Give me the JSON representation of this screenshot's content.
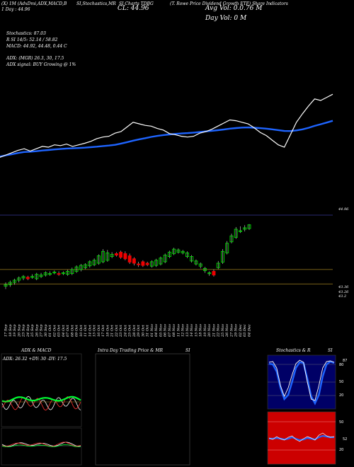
{
  "header": {
    "line1_left": "(X) 1M (AdxDmi,ADX,MACD,B",
    "line1_mid1": "SI,Stochastics,MR",
    "line1_mid2": "SI Charts TDBG",
    "line1_right": "(T. Rowe Price Dividend Growth ETF) Share Indicators",
    "line2_left": "1 Day : 44.96",
    "big_cl": "CL: 44.96",
    "big_avg": "Avg Vol: 0.0.76 M",
    "big_dayvol": "Day Vol: 0 M",
    "stoch": "Stochastics: 87.03",
    "rsi": "R              SI 14/5: 52.14 / 58.82",
    "macd": "MACD: 44.92, 44.48, 0.44 C",
    "adx": "ADX:                               (MGR) 26.3, 30, 17.5",
    "adx_signal": "ADX signal:                                  BUY Growing @ 1%"
  },
  "chart_data": {
    "type": "candlestick",
    "x": [
      "17 Sep",
      "18 Sep",
      "19 Sep",
      "20 Sep",
      "23 Sep",
      "24 Sep",
      "25 Sep",
      "26 Sep",
      "27 Sep",
      "30 Sep",
      "01 Oct",
      "02 Oct",
      "03 Oct",
      "04 Oct",
      "07 Oct",
      "08 Oct",
      "09 Oct",
      "10 Oct",
      "11 Oct",
      "14 Oct",
      "15 Oct",
      "16 Oct",
      "17 Oct",
      "18 Oct",
      "21 Oct",
      "22 Oct",
      "23 Oct",
      "24 Oct",
      "25 Oct",
      "28 Oct",
      "29 Oct",
      "30 Oct",
      "31 Oct",
      "01 Nov",
      "04 Nov",
      "05 Nov",
      "06 Nov",
      "07 Nov",
      "08 Nov",
      "11 Nov",
      "12 Nov",
      "13 Nov",
      "14 Nov",
      "15 Nov",
      "18 Nov",
      "19 Nov",
      "20 Nov",
      "21 Nov",
      "22 Nov",
      "25 Nov",
      "26 Nov",
      "27 Nov",
      "29 Nov",
      "02 Dec",
      "03 Dec",
      "04 Dec"
    ],
    "open": [
      43.3,
      43.34,
      43.4,
      43.46,
      43.52,
      43.54,
      43.56,
      43.5,
      43.56,
      43.6,
      43.62,
      43.66,
      43.64,
      43.66,
      43.62,
      43.64,
      43.7,
      43.75,
      43.8,
      43.85,
      43.88,
      43.92,
      43.96,
      44.0,
      44.1,
      44.18,
      44.22,
      44.18,
      44.12,
      44.04,
      43.9,
      43.96,
      43.92,
      43.84,
      43.86,
      43.9,
      43.96,
      44.1,
      44.18,
      44.22,
      44.2,
      44.1,
      43.98,
      43.9,
      43.84,
      43.72,
      43.64,
      43.7,
      43.8,
      43.95,
      44.2,
      44.5,
      44.62,
      44.8,
      44.84,
      44.86
    ],
    "close": [
      43.34,
      43.4,
      43.46,
      43.52,
      43.56,
      43.5,
      43.56,
      43.62,
      43.6,
      43.66,
      43.64,
      43.68,
      43.62,
      43.66,
      43.7,
      43.75,
      43.82,
      43.86,
      43.88,
      43.96,
      44.0,
      44.12,
      44.24,
      44.2,
      44.16,
      44.14,
      44.08,
      44.04,
      43.95,
      43.92,
      43.88,
      43.86,
      43.88,
      43.96,
      44.0,
      44.06,
      44.14,
      44.22,
      44.3,
      44.28,
      44.24,
      44.2,
      44.1,
      43.98,
      43.9,
      43.78,
      43.66,
      43.6,
      43.92,
      44.24,
      44.46,
      44.66,
      44.84,
      44.8,
      44.88,
      44.96
    ],
    "high": [
      43.4,
      43.45,
      43.5,
      43.56,
      43.6,
      43.58,
      43.62,
      43.66,
      43.66,
      43.7,
      43.7,
      43.72,
      43.7,
      43.7,
      43.74,
      43.8,
      43.86,
      43.9,
      43.92,
      44.0,
      44.05,
      44.16,
      44.3,
      44.28,
      44.22,
      44.22,
      44.26,
      44.24,
      44.18,
      44.08,
      43.96,
      44.0,
      43.96,
      44.0,
      44.04,
      44.1,
      44.18,
      44.26,
      44.34,
      44.32,
      44.28,
      44.24,
      44.14,
      44.02,
      43.94,
      43.82,
      43.7,
      43.75,
      43.98,
      44.3,
      44.52,
      44.72,
      44.9,
      44.92,
      44.95,
      44.98
    ],
    "low": [
      43.22,
      43.28,
      43.34,
      43.4,
      43.46,
      43.46,
      43.5,
      43.46,
      43.52,
      43.56,
      43.58,
      43.62,
      43.58,
      43.6,
      43.58,
      43.6,
      43.66,
      43.7,
      43.76,
      43.8,
      43.84,
      43.88,
      43.92,
      43.96,
      44.06,
      44.1,
      44.04,
      44.0,
      43.9,
      43.86,
      43.82,
      43.82,
      43.84,
      43.8,
      43.82,
      43.86,
      43.92,
      44.06,
      44.14,
      44.18,
      44.16,
      44.06,
      43.94,
      43.86,
      43.78,
      43.66,
      43.58,
      43.56,
      43.76,
      43.9,
      44.16,
      44.46,
      44.58,
      44.74,
      44.78,
      44.82
    ],
    "price_levels": [
      43.36,
      43.26,
      43.2
    ],
    "top_level": "44.96",
    "ylim": [
      43.0,
      45.3
    ]
  },
  "panels": {
    "adx_title": "ADX & MACD",
    "adx_values": "ADX: 26.32  +DY: 30  -DY: 17.5",
    "intraday_title": "Intra Day Trading Price & MR",
    "intraday_title_r": "SI",
    "stoch_title": "Stochastics & R",
    "stoch_title_r": "SI",
    "stoch_ticks": [
      "80",
      "50",
      "20"
    ],
    "rsi_ticks": [
      "50",
      "20"
    ],
    "stoch_value": "87",
    "rsi_value": "52"
  },
  "colors": {
    "up": "#00dd00",
    "down": "#ee0000",
    "ma_blue": "#1e64ff",
    "line_white": "#ffffff",
    "level": "#a08020",
    "stoch_bg": "#000066",
    "rsi_bg": "#cc0000"
  }
}
